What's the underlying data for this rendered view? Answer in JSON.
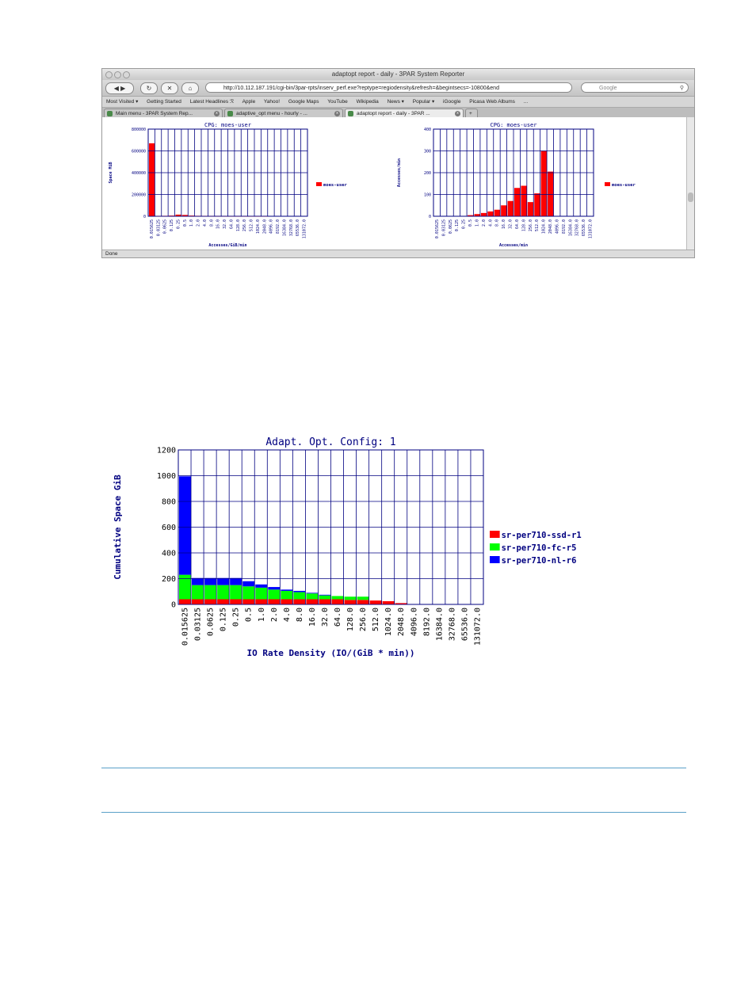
{
  "browser": {
    "window_title": "adaptopt report - daily - 3PAR System Reporter",
    "url": "http://10.112.187.191/cgi-bin/3par-rpts/inserv_perf.exe?reptype=regiodensity&refresh=&begintsecs=-10800&end",
    "search_placeholder": "Google",
    "bookmarks": [
      "Most Visited ▾",
      "Getting Started",
      "Latest Headlines ℛ",
      "Apple",
      "Yahoo!",
      "Google Maps",
      "YouTube",
      "Wikipedia",
      "News ▾",
      "Popular ▾",
      "iGoogle",
      "Picasa Web Albums",
      "..."
    ],
    "tabs": [
      "Main menu - 3PAR System Rep...",
      "adaptive_opt menu - hourly - ...",
      "adaptopt report - daily - 3PAR ..."
    ],
    "status": "Done"
  },
  "icons": {
    "back": "back-arrow-icon",
    "forward": "forward-arrow-icon",
    "reload": "reload-icon",
    "stop": "stop-icon",
    "home": "home-icon",
    "search": "magnifier-icon"
  },
  "colors": {
    "red": "#ff0000",
    "green": "#00ff00",
    "blue": "#0000ff",
    "grid": "#000080"
  },
  "chart_data": [
    {
      "type": "bar",
      "title": "CPG: moes-user",
      "ylabel": "Space MiB",
      "xlabel": "Accesses/GiB/min",
      "ylim": [
        0,
        800000
      ],
      "yticks": [
        "0",
        "200000",
        "400000",
        "600000",
        "800000"
      ],
      "categories": [
        "0.015625",
        "0.03125",
        "0.0625",
        "0.125",
        "0.25",
        "0.5",
        "1.0",
        "2.0",
        "4.0",
        "8.0",
        "16.0",
        "32.0",
        "64.0",
        "128.0",
        "256.0",
        "512.0",
        "1024.0",
        "2048.0",
        "4096.0",
        "8192.0",
        "16384.0",
        "32768.0",
        "65536.0",
        "131072.0"
      ],
      "series": [
        {
          "name": "moes-user",
          "color": "#ff0000",
          "values": [
            670000,
            2000,
            4000,
            6000,
            15000,
            12000,
            6000,
            4000,
            3000,
            2000,
            1500,
            1000,
            800,
            600,
            500,
            400,
            300,
            200,
            0,
            0,
            0,
            0,
            0,
            0
          ]
        }
      ],
      "legend": "right"
    },
    {
      "type": "bar",
      "title": "CPG: moes-user",
      "ylabel": "Accesses/min",
      "xlabel": "Accesses/min",
      "ylim": [
        0,
        400
      ],
      "yticks": [
        "0",
        "100",
        "200",
        "300",
        "400"
      ],
      "categories": [
        "0.015625",
        "0.03125",
        "0.0625",
        "0.125",
        "0.25",
        "0.5",
        "1.0",
        "2.0",
        "4.0",
        "8.0",
        "16.0",
        "32.0",
        "64.0",
        "128.0",
        "256.0",
        "512.0",
        "1024.0",
        "2048.0",
        "4096.0",
        "8192.0",
        "16384.0",
        "32768.0",
        "65536.0",
        "131072.0"
      ],
      "series": [
        {
          "name": "moes-user",
          "color": "#ff0000",
          "values": [
            0,
            0,
            0,
            0,
            0,
            5,
            10,
            15,
            22,
            30,
            50,
            70,
            130,
            140,
            65,
            105,
            300,
            205,
            0,
            0,
            0,
            0,
            0,
            0
          ]
        }
      ],
      "legend": "right"
    },
    {
      "type": "bar",
      "stacked": true,
      "title": "Adapt. Opt. Config: 1",
      "ylabel": "Cumulative Space GiB",
      "xlabel": "IO Rate Density (IO/(GiB * min))",
      "ylim": [
        0,
        1200
      ],
      "yticks": [
        "0",
        "200",
        "400",
        "600",
        "800",
        "1000",
        "1200"
      ],
      "categories": [
        "0.015625",
        "0.03125",
        "0.0625",
        "0.125",
        "0.25",
        "0.5",
        "1.0",
        "2.0",
        "4.0",
        "8.0",
        "16.0",
        "32.0",
        "64.0",
        "128.0",
        "256.0",
        "512.0",
        "1024.0",
        "2048.0",
        "4096.0",
        "8192.0",
        "16384.0",
        "32768.0",
        "65536.0",
        "131072.0"
      ],
      "series": [
        {
          "name": "sr-per710-ssd-r1",
          "color": "#ff0000",
          "values": [
            40,
            40,
            40,
            40,
            40,
            40,
            40,
            40,
            40,
            40,
            40,
            40,
            40,
            35,
            35,
            30,
            25,
            10,
            0,
            0,
            0,
            0,
            0,
            0
          ]
        },
        {
          "name": "sr-per710-fc-r5",
          "color": "#00ff00",
          "values": [
            190,
            110,
            110,
            110,
            110,
            100,
            90,
            75,
            65,
            55,
            45,
            30,
            25,
            25,
            25,
            0,
            0,
            0,
            0,
            0,
            0,
            0,
            0,
            0
          ]
        },
        {
          "name": "sr-per710-nl-r6",
          "color": "#0000ff",
          "values": [
            765,
            55,
            55,
            55,
            55,
            40,
            25,
            20,
            10,
            10,
            5,
            5,
            0,
            0,
            0,
            0,
            0,
            0,
            0,
            0,
            0,
            0,
            0,
            0
          ]
        }
      ],
      "legend": "right"
    }
  ]
}
